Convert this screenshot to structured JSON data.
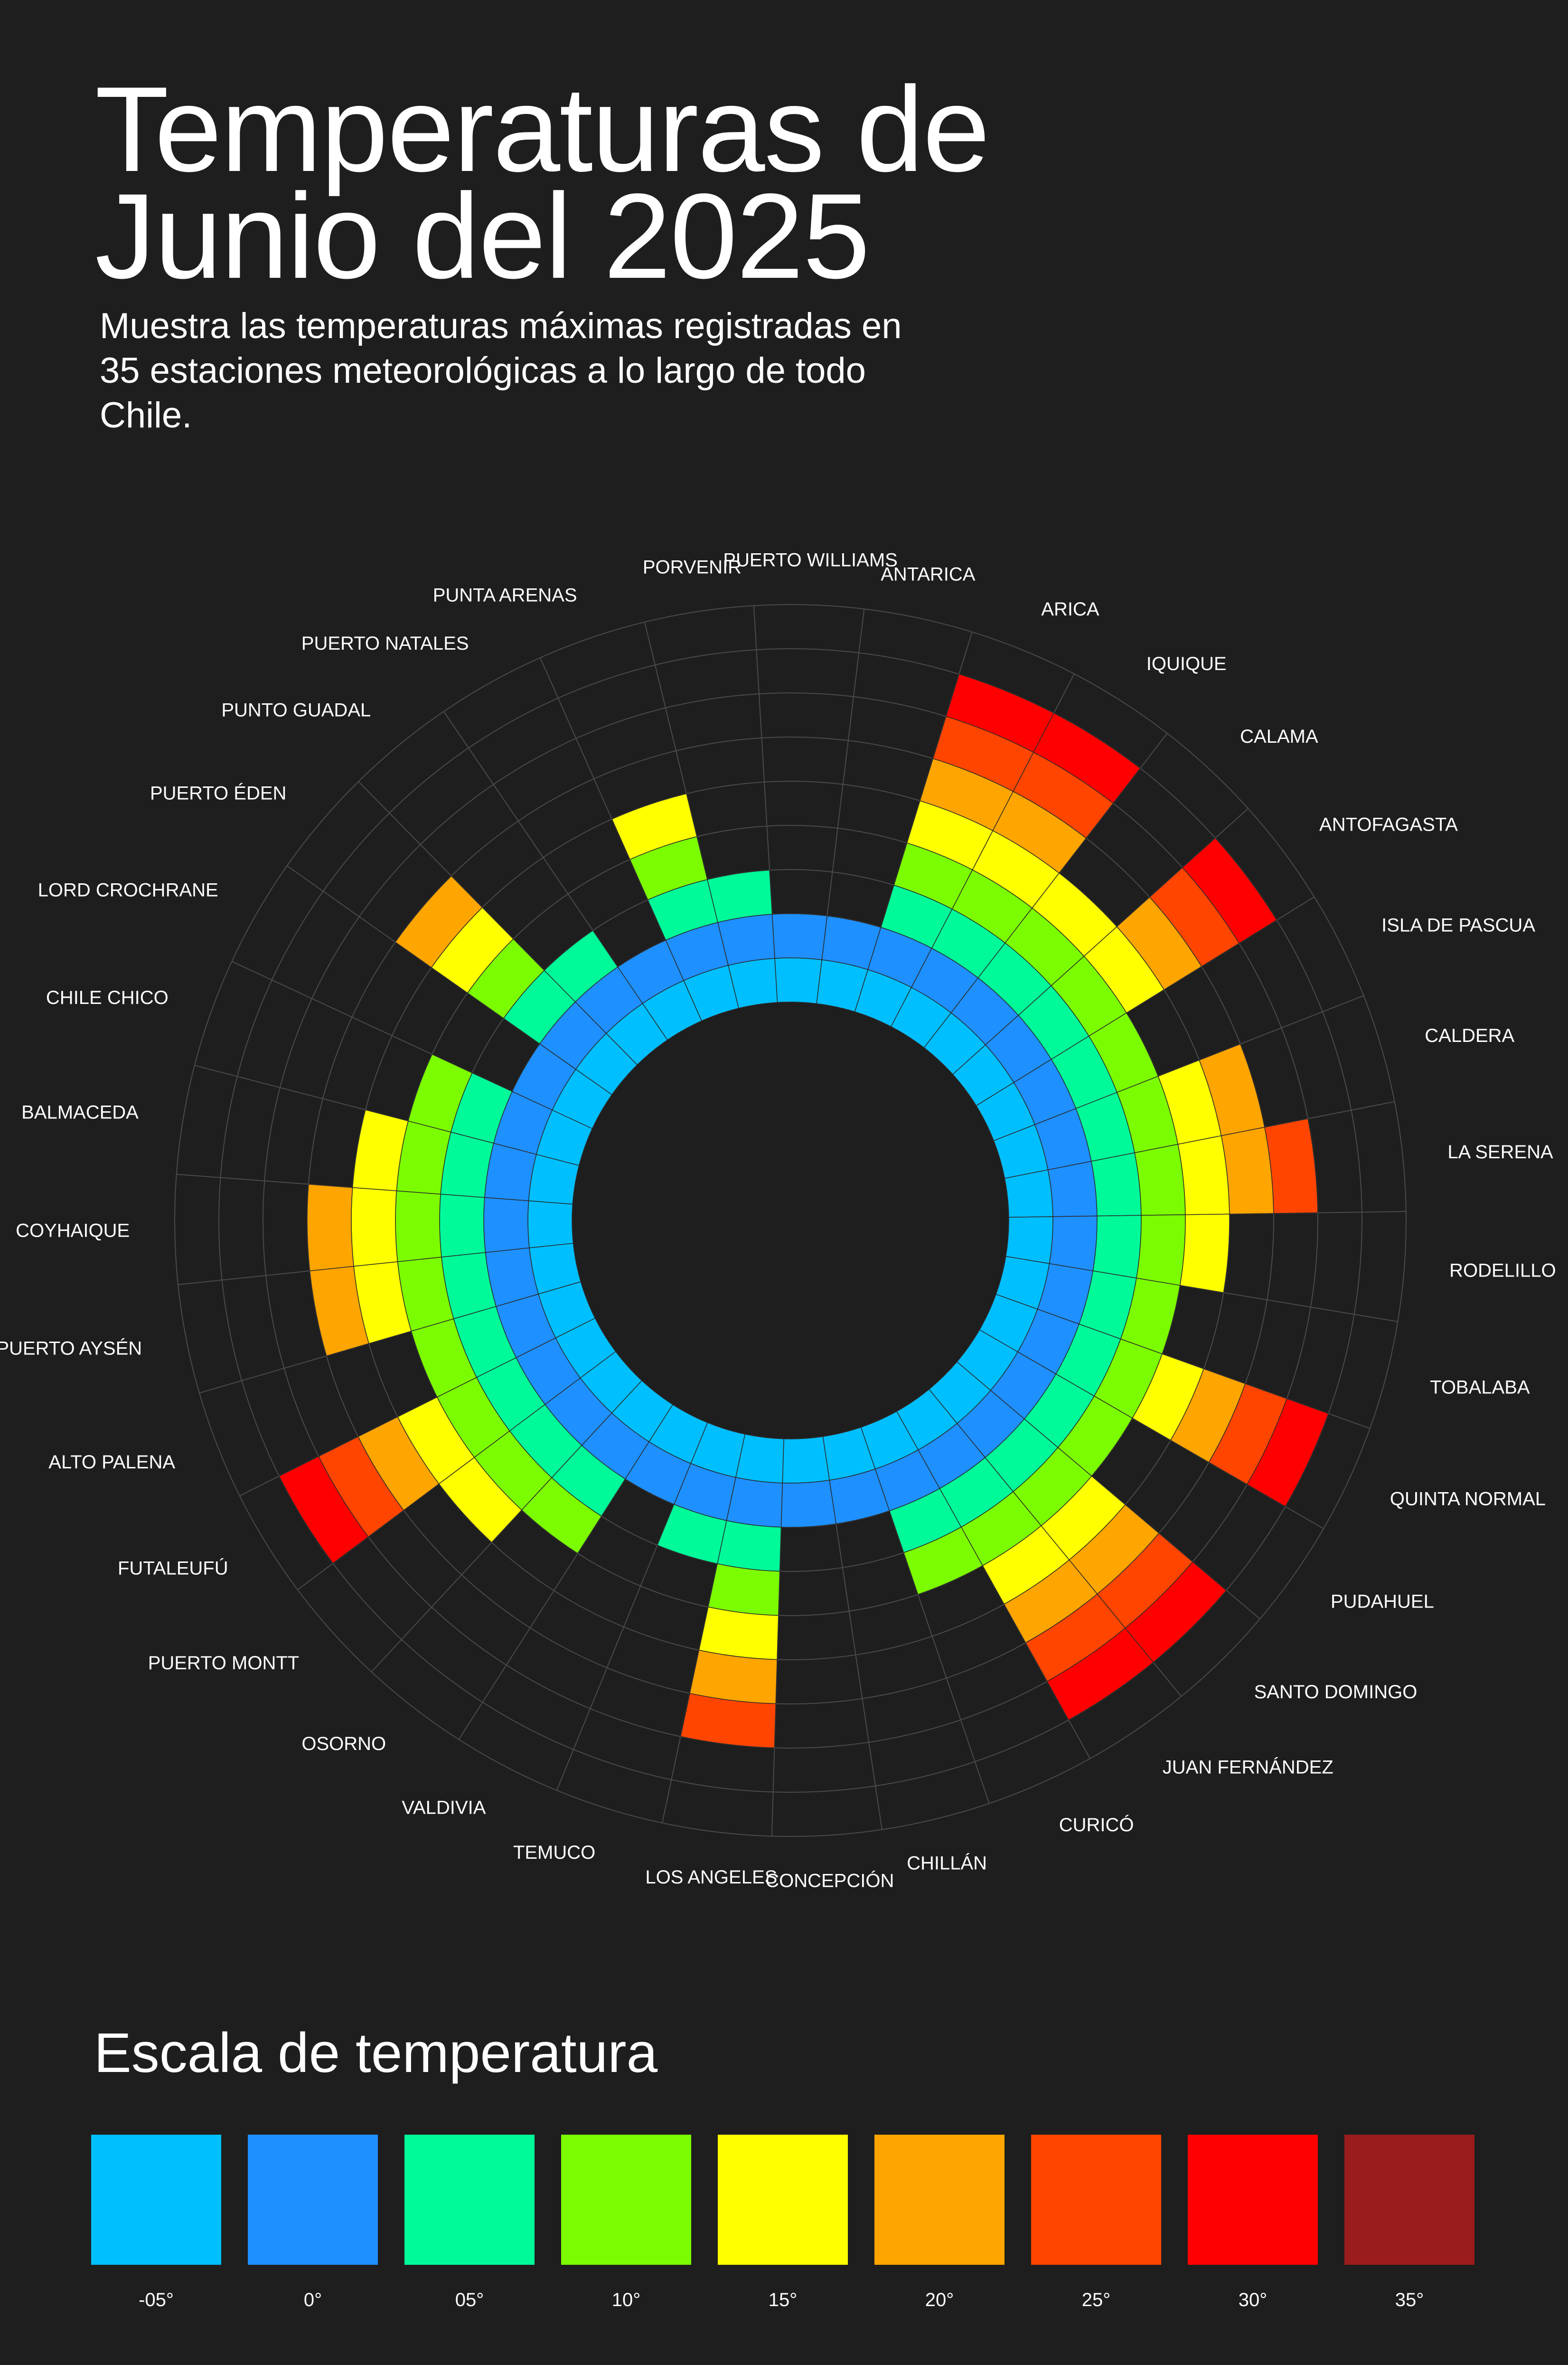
{
  "title_line1": "Temperaturas de",
  "title_line2": "Junio del 2025",
  "subtitle": "Muestra las temperaturas máximas registradas en 35 estaciones meteorológicas a lo largo de todo Chile.",
  "legend": {
    "title": "Escala de temperatura",
    "items": [
      {
        "label": "-05°",
        "color": "#00bfff"
      },
      {
        "label": "0°",
        "color": "#1e90ff"
      },
      {
        "label": "05°",
        "color": "#00fa9a"
      },
      {
        "label": "10°",
        "color": "#7cfc00"
      },
      {
        "label": "15°",
        "color": "#ffff00"
      },
      {
        "label": "20°",
        "color": "#ffa500"
      },
      {
        "label": "25°",
        "color": "#ff4500"
      },
      {
        "label": "30°",
        "color": "#ff0000"
      },
      {
        "label": "35°",
        "color": "#9b1c1c"
      }
    ]
  },
  "chart_data": {
    "type": "radial-bar",
    "unit": "°C",
    "scale": [
      -5,
      0,
      5,
      10,
      15,
      20,
      25,
      30,
      35
    ],
    "categories": [
      "ANTARICA",
      "ARICA",
      "IQUIQUE",
      "CALAMA",
      "ANTOFAGASTA",
      "ISLA DE PASCUA",
      "CALDERA",
      "LA SERENA",
      "RODELILLO",
      "TOBALABA",
      "QUINTA NORMAL",
      "PUDAHUEL",
      "SANTO DOMINGO",
      "JUAN FERNÁNDEZ",
      "CURICÓ",
      "CHILLÁN",
      "CONCEPCIÓN",
      "LOS ANGELES",
      "TEMUCO",
      "VALDIVIA",
      "OSORNO",
      "PUERTO MONTT",
      "FUTALEUFÚ",
      "ALTO PALENA",
      "PUERTO AYSÉN",
      "COYHAIQUE",
      "BALMACEDA",
      "CHILE CHICO",
      "LORD CROCHRANE",
      "PUERTO ÉDEN",
      "PUNTO GUADAL",
      "PUERTO NATALES",
      "PUNTA ARENAS",
      "PORVENIR",
      "PUERTO WILLIAMS"
    ],
    "values": [
      0,
      30,
      30,
      15,
      30,
      10,
      20,
      25,
      15,
      10,
      30,
      10,
      30,
      30,
      10,
      0,
      0,
      25,
      5,
      0,
      10,
      15,
      30,
      10,
      20,
      20,
      15,
      10,
      0,
      20,
      5,
      0,
      15,
      5,
      0
    ]
  }
}
